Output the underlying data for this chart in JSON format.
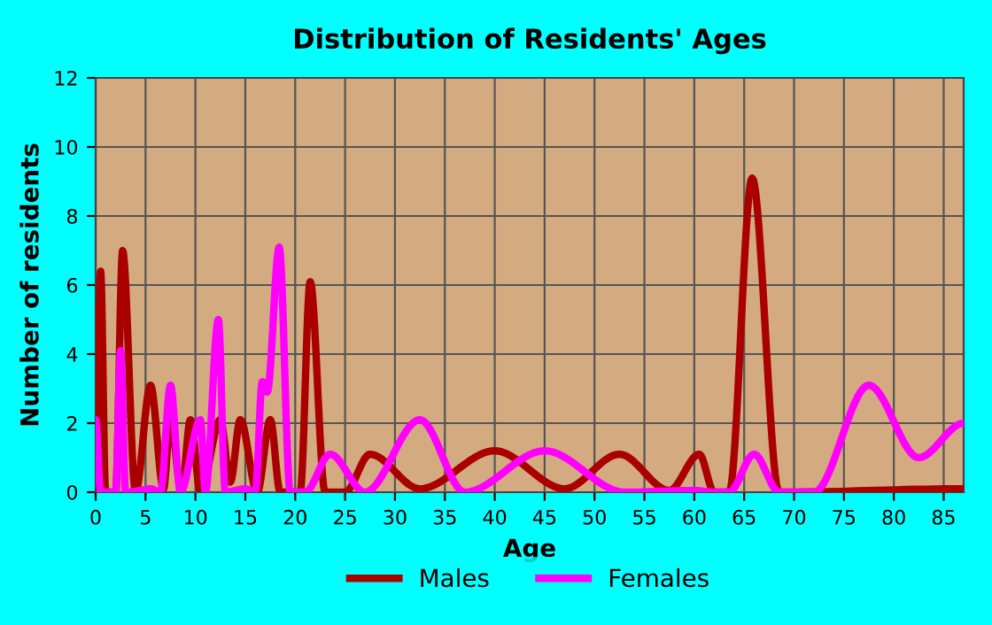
{
  "chart_data": {
    "type": "line",
    "title": "Distribution of Residents' Ages",
    "xlabel": "Age",
    "ylabel": "Number of residents",
    "xlim": [
      0,
      87
    ],
    "xticks": [
      0,
      5,
      10,
      15,
      20,
      25,
      30,
      35,
      40,
      45,
      50,
      55,
      60,
      65,
      70,
      75,
      80,
      85
    ],
    "ylim": [
      0,
      12
    ],
    "yticks": [
      0,
      2,
      4,
      6,
      8,
      10,
      12
    ],
    "grid": true,
    "legend": "bottom",
    "marker": "none",
    "line_style": "solid",
    "series": [
      {
        "name": "Males",
        "color": "#aa0000",
        "x": [
          0,
          0.5,
          1,
          2,
          2.7,
          4,
          5.5,
          6.8,
          7.5,
          8.6,
          9.5,
          10.5,
          12.5,
          13.5,
          14.5,
          16.2,
          17.5,
          18.5,
          20.5,
          21.5,
          23,
          25,
          27.5,
          32.5,
          40,
          47,
          52.5,
          57.5,
          60.5,
          62,
          63.5,
          65.8,
          68.5,
          87
        ],
        "values": [
          0,
          6.4,
          0,
          0,
          7,
          0,
          3.1,
          0.1,
          2.1,
          0,
          2.1,
          0,
          2.1,
          0.3,
          2.1,
          0,
          2.1,
          0,
          0,
          6.1,
          0,
          0,
          1.1,
          0.1,
          1.2,
          0.1,
          1.1,
          0.05,
          1.1,
          0,
          0,
          9.1,
          0,
          0.1
        ]
      },
      {
        "name": "Females",
        "color": "#ff00ff",
        "x": [
          0,
          0.5,
          2,
          2.5,
          3,
          4.5,
          5.5,
          6.5,
          7.5,
          8.5,
          10.5,
          11,
          12.3,
          13,
          15,
          16,
          16.7,
          17.2,
          18.4,
          19.5,
          21,
          23.5,
          27,
          32.5,
          37,
          45,
          53,
          60,
          62,
          63.5,
          66,
          68.5,
          72,
          77.5,
          82.5,
          87
        ],
        "values": [
          2.1,
          0,
          0,
          4.1,
          0,
          0.05,
          0.1,
          0,
          3.1,
          0,
          2.1,
          0,
          5,
          0,
          0.1,
          0,
          3.2,
          2.9,
          7.1,
          0,
          0,
          1.1,
          0,
          2.1,
          0,
          1.2,
          0,
          0.05,
          0,
          0,
          1.1,
          0,
          0,
          3.1,
          1,
          2
        ]
      }
    ]
  }
}
